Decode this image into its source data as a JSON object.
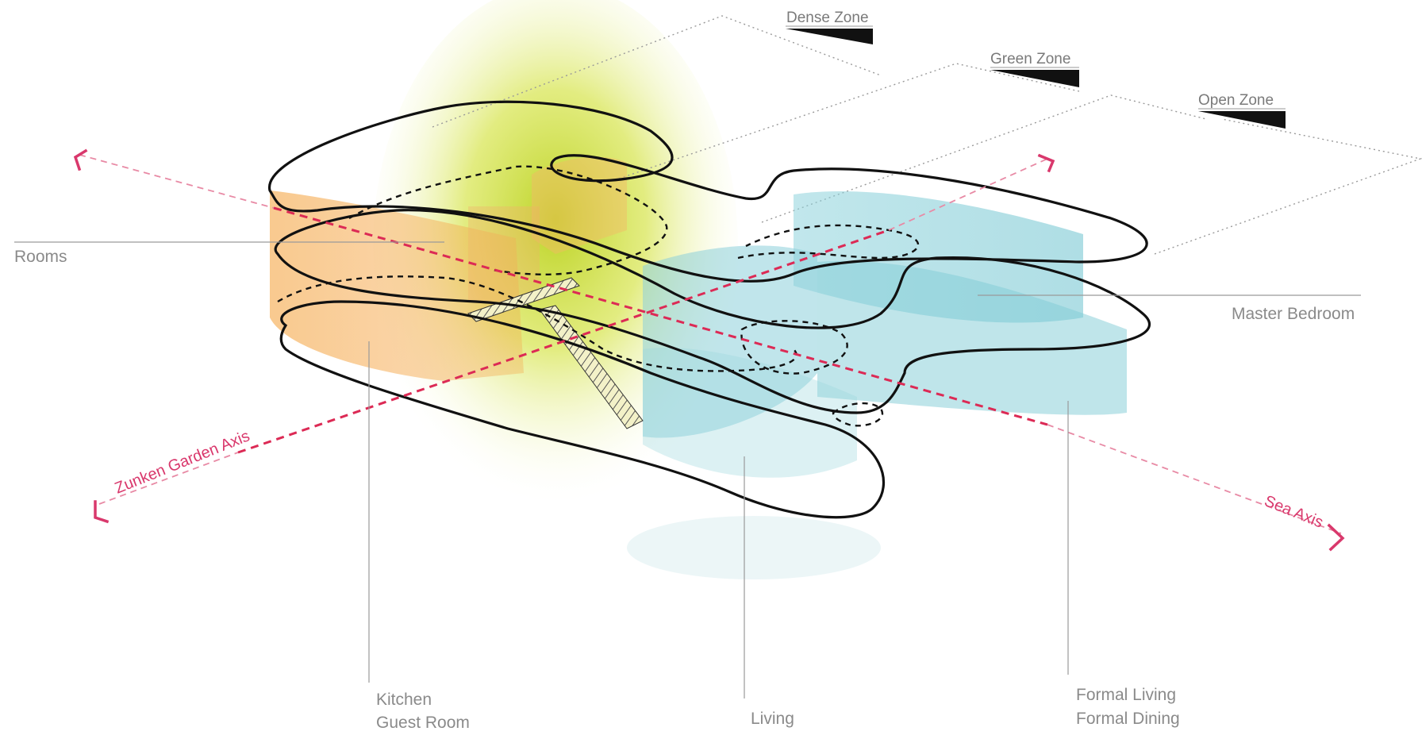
{
  "zones": {
    "dense": "Dense Zone",
    "green": "Green Zone",
    "open": "Open Zone"
  },
  "axes": {
    "garden": "Zunken Garden Axis",
    "sea": "Sea Axis"
  },
  "labels": {
    "rooms": "Rooms",
    "master_bedroom": "Master Bedroom",
    "kitchen": "Kitchen",
    "guest_room": "Guest Room",
    "living": "Living",
    "formal_living": "Formal Living",
    "formal_dining": "Formal Dining"
  },
  "colors": {
    "orange_zone": "#f6b15a",
    "green_zone": "#c8dc28",
    "blue_zone": "#7fcbd6",
    "axis": "#dc2a55"
  }
}
